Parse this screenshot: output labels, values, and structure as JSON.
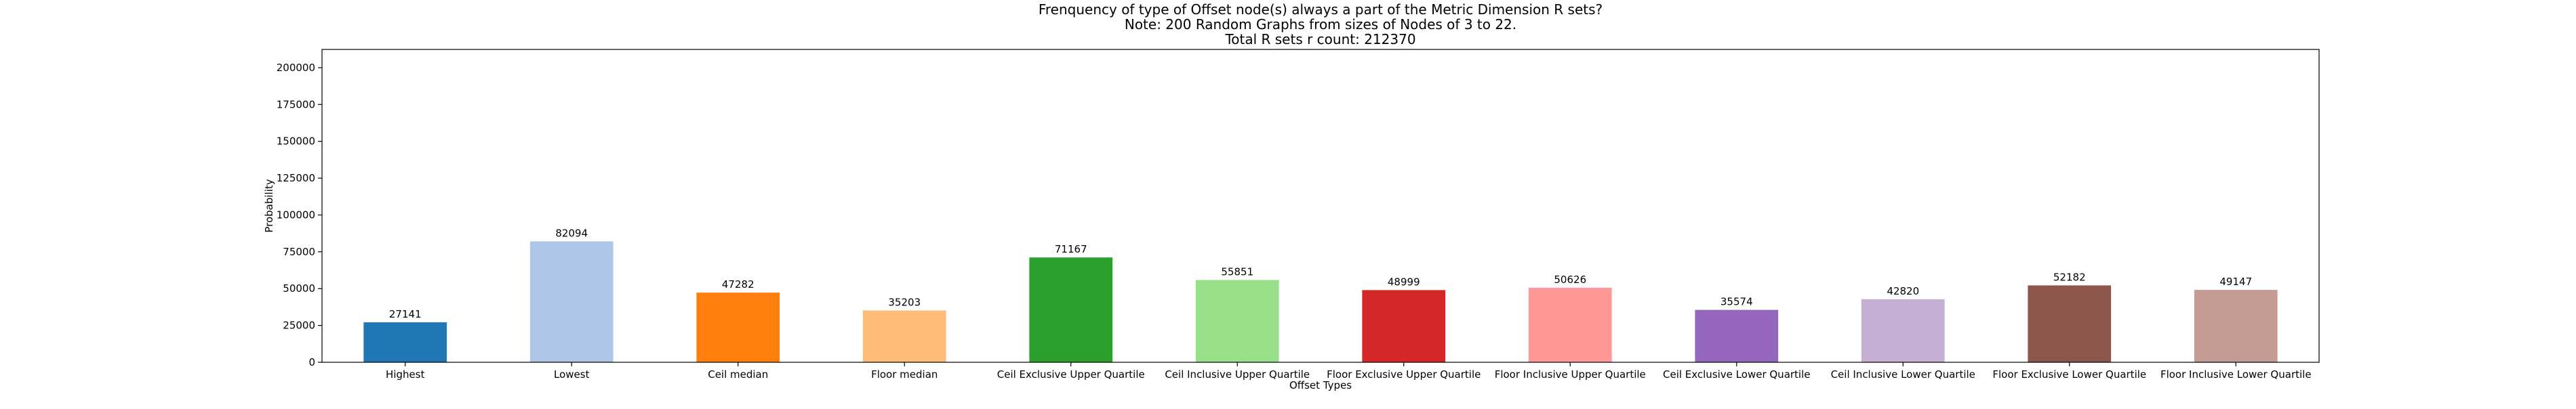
{
  "chart_data": {
    "type": "bar",
    "title_lines": [
      "Frenquency of type of Offset node(s) always a part of the Metric Dimension R sets?",
      "Note: 200 Random Graphs from sizes of Nodes of 3 to 22.",
      "Total R sets r count: 212370"
    ],
    "xlabel": "Offset Types",
    "ylabel": "Probability",
    "ylim": [
      0,
      212370
    ],
    "yticks": [
      0,
      25000,
      50000,
      75000,
      100000,
      125000,
      150000,
      175000,
      200000
    ],
    "grid": false,
    "categories": [
      "Highest",
      "Lowest",
      "Ceil median",
      "Floor median",
      "Ceil Exclusive Upper Quartile",
      "Ceil Inclusive Upper Quartile",
      "Floor Exclusive Upper Quartile",
      "Floor Inclusive Upper Quartile",
      "Ceil Exclusive Lower Quartile",
      "Ceil Inclusive Lower Quartile",
      "Floor Exclusive Lower Quartile",
      "Floor Inclusive Lower Quartile"
    ],
    "values": [
      27141,
      82094,
      47282,
      35203,
      71167,
      55851,
      48999,
      50626,
      35574,
      42820,
      52182,
      49147
    ],
    "colors": [
      "#1f77b4",
      "#aec7e8",
      "#ff7f0e",
      "#ffbb78",
      "#2ca02c",
      "#98df8a",
      "#d62728",
      "#ff9896",
      "#9467bd",
      "#c5b0d5",
      "#8c564b",
      "#c49c94"
    ]
  }
}
